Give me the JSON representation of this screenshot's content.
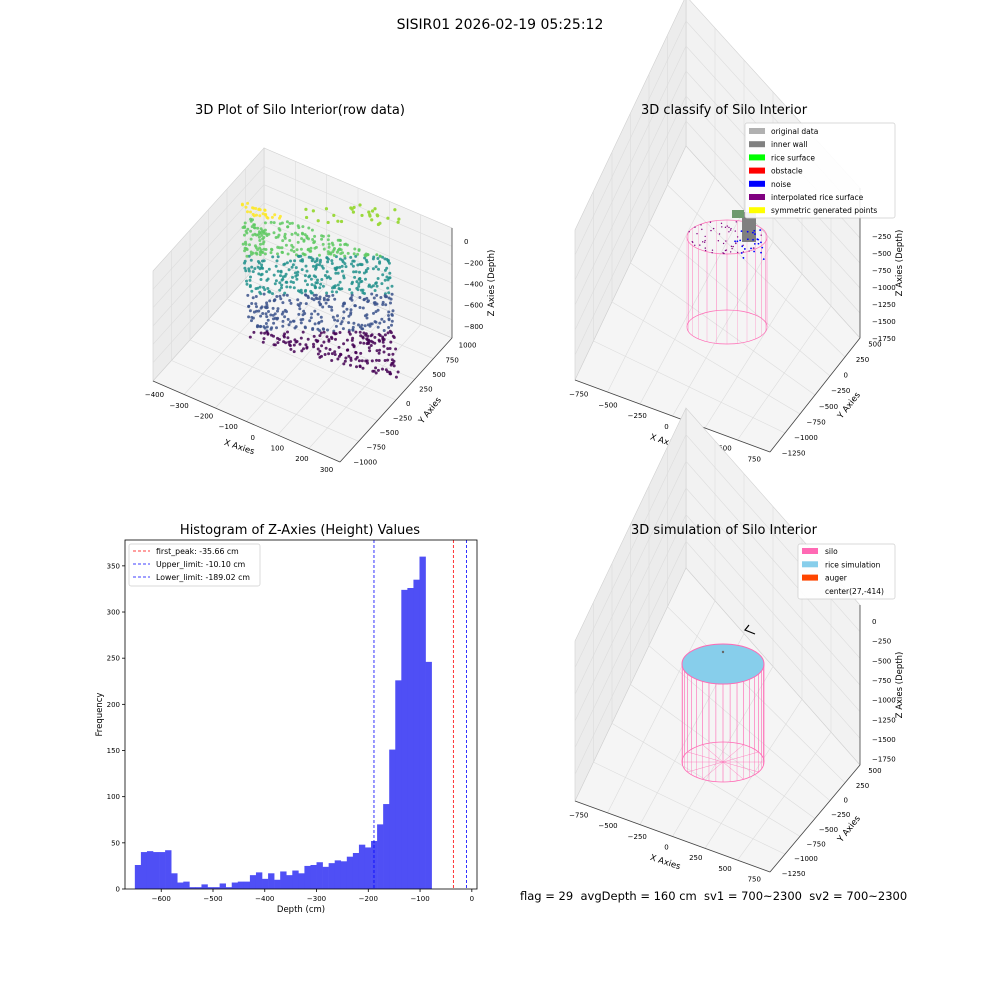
{
  "figure_title": "SISIR01 2026-02-19 05:25:12",
  "footer": {
    "text": "flag = 29  avgDepth = 160 cm  sv1 = 700~2300  sv2 = 700~2300"
  },
  "colors": {
    "silo": "#ff69b4",
    "rice_simulation": "#87ceeb",
    "auger": "#ff4500",
    "original_data": "#b0b0b0",
    "inner_wall": "#808080",
    "rice_surface": "#00ff00",
    "obstacle": "#ff0000",
    "noise": "#0000ff",
    "interpolated": "#800080",
    "symmetric": "#ffff00",
    "hist_bar": "#4f4ff5"
  },
  "chart_data": [
    {
      "type": "scatter",
      "title": "3D Plot of Silo Interior(row data)",
      "xlabel": "X Axies",
      "ylabel": "Y Axies",
      "zlabel": "Z Axies (Depth)",
      "x_ticks": [
        "−400",
        "−300",
        "−200",
        "−100",
        "0",
        "100",
        "200",
        "300"
      ],
      "y_ticks": [
        "−1000",
        "−750",
        "−500",
        "−250",
        "0",
        "250",
        "500",
        "750",
        "1000"
      ],
      "z_ticks": [
        "0",
        "−200",
        "−400",
        "−600",
        "−800"
      ],
      "colormap": "viridis"
    },
    {
      "type": "scatter",
      "title": "3D classify of Silo Interior",
      "xlabel": "X Axies",
      "ylabel": "Y Axies",
      "zlabel": "Z Axies (Depth)",
      "x_ticks": [
        "−750",
        "−500",
        "−250",
        "0",
        "250",
        "500",
        "750"
      ],
      "y_ticks": [
        "−1250",
        "−1000",
        "−750",
        "−500",
        "−250",
        "0",
        "250",
        "500"
      ],
      "z_ticks": [
        "−250",
        "−500",
        "−750",
        "−1000",
        "−1250",
        "−1500",
        "−1750"
      ],
      "legend": [
        "original data",
        "inner wall",
        "rice surface",
        "obstacle",
        "noise",
        "interpolated rice surface",
        "symmetric generated points"
      ],
      "legend_position": "top-right"
    },
    {
      "type": "bar",
      "title": "Histogram of Z-Axies (Height) Values",
      "xlabel": "Depth (cm)",
      "ylabel": "Frequency",
      "xlim": [
        -670,
        10
      ],
      "ylim": [
        0,
        378
      ],
      "x_ticks": [
        -600,
        -500,
        -400,
        -300,
        -200,
        -100,
        0
      ],
      "y_ticks": [
        0,
        50,
        100,
        150,
        200,
        250,
        300,
        350
      ],
      "bin_width": 11.7,
      "bin_start": -651,
      "values": [
        26,
        40,
        41,
        40,
        40,
        42,
        17,
        7,
        8,
        2,
        2,
        5,
        2,
        2,
        6,
        2,
        7,
        8,
        8,
        15,
        18,
        11,
        17,
        10,
        19,
        15,
        20,
        17,
        25,
        26,
        29,
        24,
        28,
        31,
        30,
        35,
        39,
        48,
        45,
        52,
        70,
        92,
        151,
        226,
        324,
        326,
        335,
        360,
        246
      ],
      "lines": [
        {
          "label": "first_peak: -35.66 cm",
          "value": -35.66,
          "color": "#ff0000"
        },
        {
          "label": "Upper_limit: -10.10 cm",
          "value": -10.1,
          "color": "#0000ff"
        },
        {
          "label": "Lower_limit: -189.02 cm",
          "value": -189.02,
          "color": "#0000ff"
        }
      ],
      "legend_position": "top-left"
    },
    {
      "type": "scatter",
      "title": "3D simulation of Silo Interior",
      "xlabel": "X Axies",
      "ylabel": "Y Axies",
      "zlabel": "Z Axies (Depth)",
      "x_ticks": [
        "−750",
        "−500",
        "−250",
        "0",
        "250",
        "500",
        "750"
      ],
      "y_ticks": [
        "−1250",
        "−1000",
        "−750",
        "−500",
        "−250",
        "0",
        "250",
        "500"
      ],
      "z_ticks": [
        "0",
        "−250",
        "−500",
        "−750",
        "−1000",
        "−1250",
        "−1500",
        "−1750"
      ],
      "legend": [
        "silo",
        "rice simulation",
        "auger",
        "center(27,-414)"
      ],
      "legend_position": "top-right"
    }
  ]
}
